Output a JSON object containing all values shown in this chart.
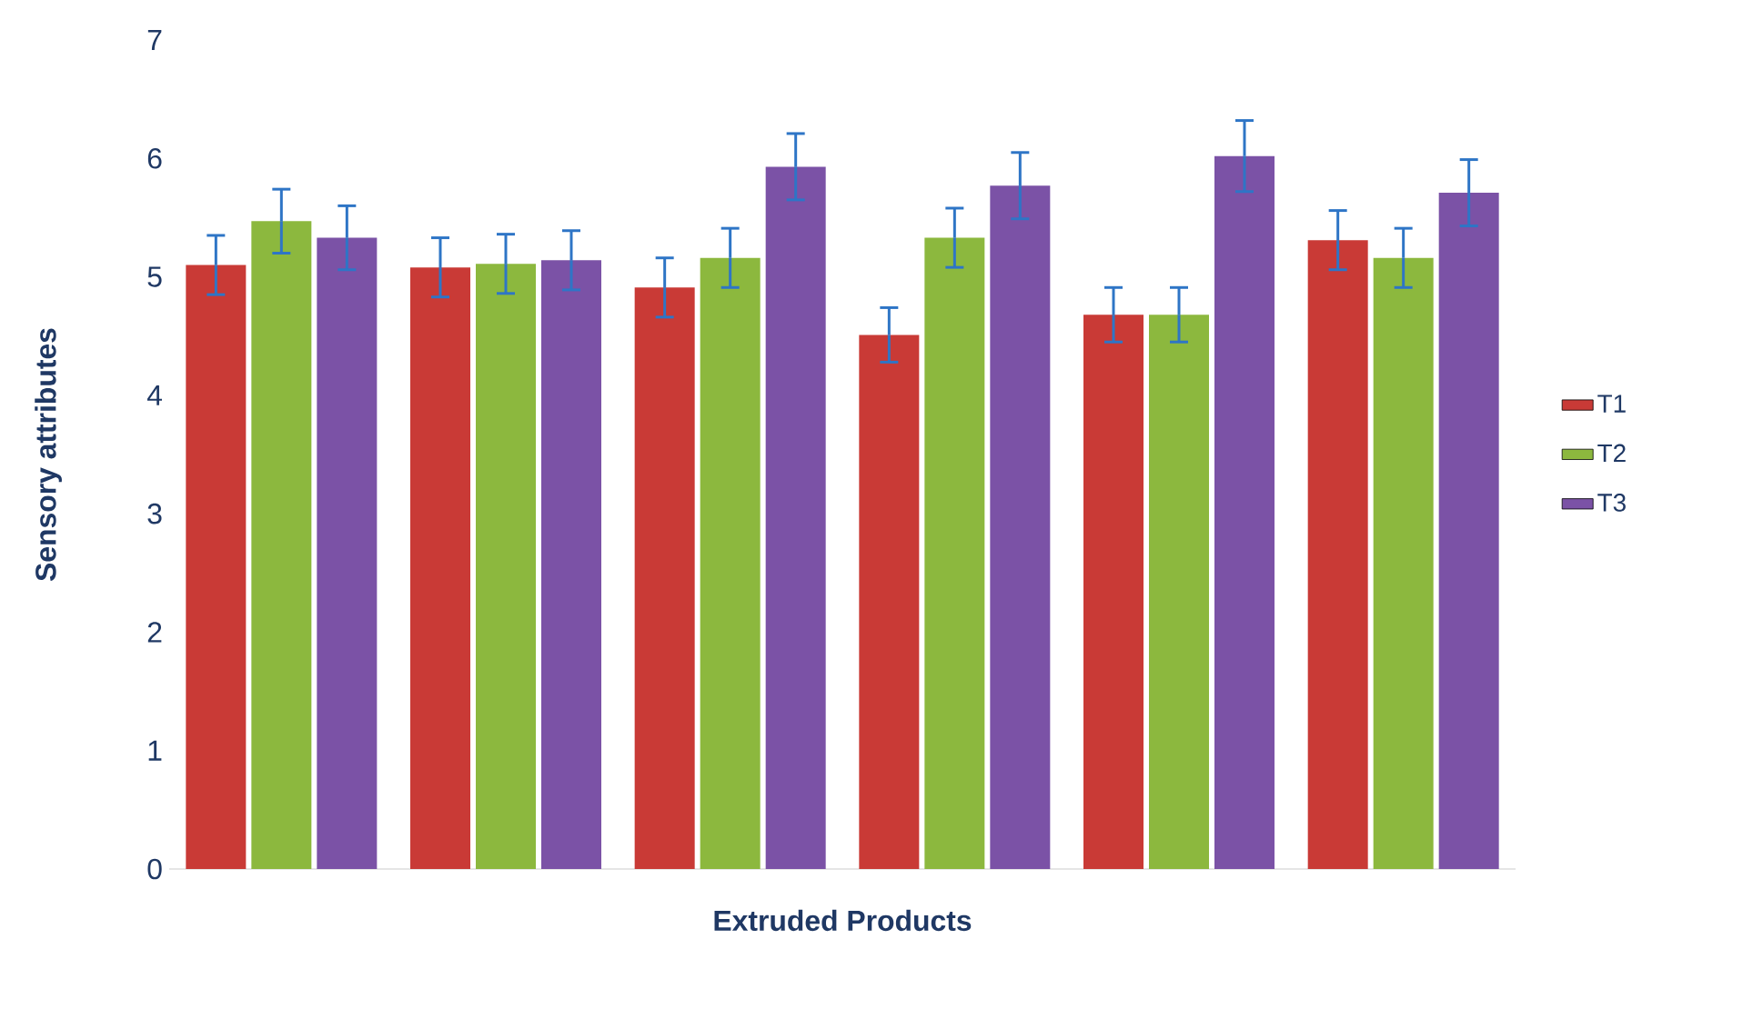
{
  "chart_data": {
    "type": "bar",
    "xlabel": "Extruded Products",
    "ylabel": "Sensory attributes",
    "categories": [
      null,
      null,
      null,
      null,
      null,
      null
    ],
    "series": [
      {
        "name": "T1",
        "color": "#c93a36",
        "values": [
          5.1,
          5.08,
          4.91,
          4.51,
          4.68,
          5.31
        ],
        "errors": [
          0.25,
          0.25,
          0.25,
          0.23,
          0.23,
          0.25
        ]
      },
      {
        "name": "T2",
        "color": "#8cb83e",
        "values": [
          5.47,
          5.11,
          5.16,
          5.33,
          4.68,
          5.16
        ],
        "errors": [
          0.27,
          0.25,
          0.25,
          0.25,
          0.23,
          0.25
        ]
      },
      {
        "name": "T3",
        "color": "#7b52a6",
        "values": [
          5.33,
          5.14,
          5.93,
          5.77,
          6.02,
          5.71
        ],
        "errors": [
          0.27,
          0.25,
          0.28,
          0.28,
          0.3,
          0.28
        ]
      }
    ],
    "ylim": [
      0,
      7
    ],
    "yticks": [
      0,
      1,
      2,
      3,
      4,
      5,
      6,
      7
    ],
    "grid": false,
    "legend": "right"
  }
}
